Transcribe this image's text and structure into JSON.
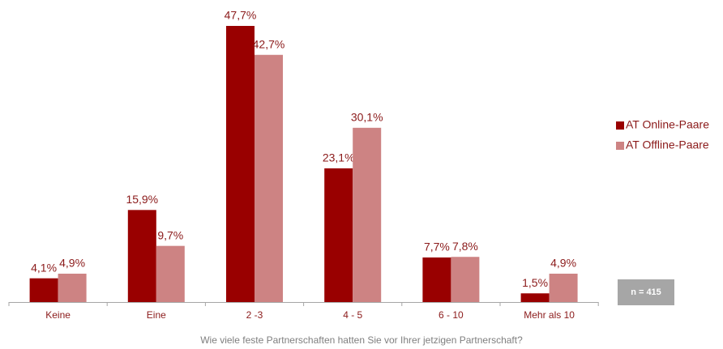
{
  "chart_data": {
    "type": "bar",
    "categories": [
      "Keine",
      "Eine",
      "2 -3",
      "4 - 5",
      "6 - 10",
      "Mehr als 10"
    ],
    "series": [
      {
        "name": "AT Online-Paare",
        "color": "#990000",
        "values": [
          4.1,
          15.9,
          47.7,
          23.1,
          7.7,
          1.5
        ],
        "value_labels": [
          "4,1%",
          "15,9%",
          "47,7%",
          "23,1%",
          "7,7%",
          "1,5%"
        ]
      },
      {
        "name": "AT Offline-Paare",
        "color": "#cd8383",
        "values": [
          4.9,
          9.7,
          42.7,
          30.1,
          7.8,
          4.9
        ],
        "value_labels": [
          "4,9%",
          "9,7%",
          "42,7%",
          "30,1%",
          "7,8%",
          "4,9%"
        ]
      }
    ],
    "xlabel": "Wie viele feste Partnerschaften hatten Sie vor Ihrer jetzigen Partnerschaft?",
    "annotation": "n = 415",
    "legend": "right"
  }
}
